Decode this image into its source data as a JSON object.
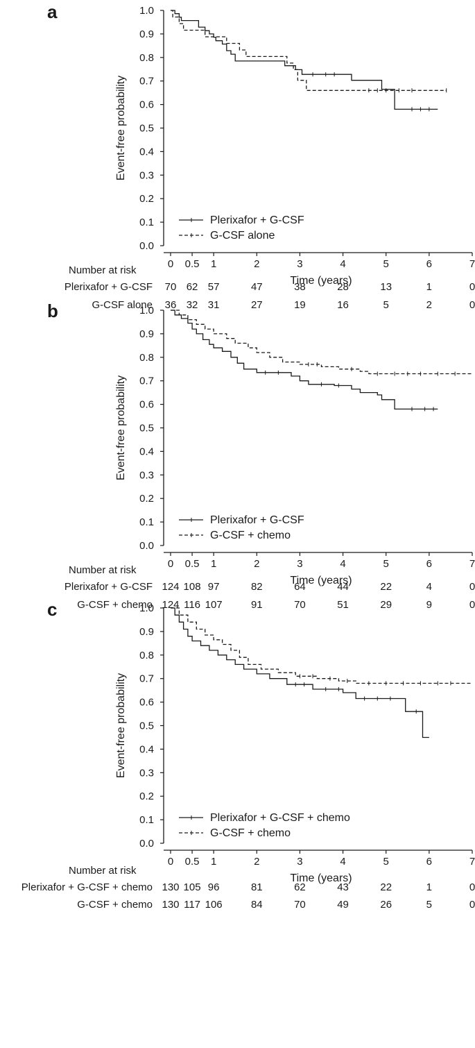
{
  "chart_data": [
    {
      "panel": "a",
      "type": "line",
      "title": "",
      "xlabel": "Time (years)",
      "ylabel": "Event-free probability",
      "xlim": [
        0,
        7
      ],
      "ylim": [
        0,
        1.0
      ],
      "xticks": [
        "0",
        "0.5",
        "1",
        "2",
        "3",
        "4",
        "5",
        "6",
        "7"
      ],
      "yticks": [
        "0.0",
        "0.1",
        "0.2",
        "0.3",
        "0.4",
        "0.5",
        "0.6",
        "0.7",
        "0.8",
        "0.9",
        "1.0"
      ],
      "legend_position": "bottom-left",
      "series": [
        {
          "name": "Plerixafor + G-CSF",
          "style": "solid",
          "points": [
            [
              0,
              1.0
            ],
            [
              0.1,
              0.986
            ],
            [
              0.2,
              0.971
            ],
            [
              0.25,
              0.957
            ],
            [
              0.65,
              0.929
            ],
            [
              0.8,
              0.914
            ],
            [
              0.9,
              0.9
            ],
            [
              1.0,
              0.886
            ],
            [
              1.05,
              0.871
            ],
            [
              1.2,
              0.857
            ],
            [
              1.3,
              0.829
            ],
            [
              1.4,
              0.814
            ],
            [
              1.5,
              0.785
            ],
            [
              2.65,
              0.765
            ],
            [
              2.9,
              0.748
            ],
            [
              3.05,
              0.728
            ],
            [
              3.9,
              0.728
            ],
            [
              4.2,
              0.703
            ],
            [
              4.85,
              0.703
            ],
            [
              4.9,
              0.665
            ],
            [
              5.2,
              0.58
            ],
            [
              6.2,
              0.58
            ]
          ],
          "censored": [
            3.3,
            3.6,
            3.8,
            5.6,
            5.8,
            6.0
          ]
        },
        {
          "name": "G-CSF alone",
          "style": "dashed",
          "points": [
            [
              0,
              1.0
            ],
            [
              0.05,
              0.972
            ],
            [
              0.2,
              0.944
            ],
            [
              0.3,
              0.916
            ],
            [
              0.7,
              0.916
            ],
            [
              0.8,
              0.888
            ],
            [
              1.25,
              0.888
            ],
            [
              1.3,
              0.86
            ],
            [
              1.55,
              0.86
            ],
            [
              1.6,
              0.832
            ],
            [
              1.75,
              0.804
            ],
            [
              2.65,
              0.804
            ],
            [
              2.7,
              0.776
            ],
            [
              2.85,
              0.748
            ],
            [
              2.95,
              0.703
            ],
            [
              3.15,
              0.66
            ],
            [
              6.4,
              0.66
            ]
          ],
          "censored": [
            4.6,
            4.8,
            5.0,
            5.3,
            5.6,
            6.4
          ]
        }
      ],
      "risk_table": {
        "header": "Number at risk",
        "times": [
          "0",
          "0.5",
          "1",
          "2",
          "3",
          "4",
          "5",
          "6",
          "7"
        ],
        "rows": [
          {
            "label": "Plerixafor + G-CSF",
            "values": [
              "70",
              "62",
              "57",
              "47",
              "38",
              "28",
              "13",
              "1",
              "0"
            ]
          },
          {
            "label": "G-CSF alone",
            "values": [
              "36",
              "32",
              "31",
              "27",
              "19",
              "16",
              "5",
              "2",
              "0"
            ]
          }
        ]
      }
    },
    {
      "panel": "b",
      "type": "line",
      "title": "",
      "xlabel": "Time (years)",
      "ylabel": "Event-free probability",
      "xlim": [
        0,
        7
      ],
      "ylim": [
        0,
        1.0
      ],
      "xticks": [
        "0",
        "0.5",
        "1",
        "2",
        "3",
        "4",
        "5",
        "6",
        "7"
      ],
      "yticks": [
        "0.0",
        "0.1",
        "0.2",
        "0.3",
        "0.4",
        "0.5",
        "0.6",
        "0.7",
        "0.8",
        "0.9",
        "1.0"
      ],
      "legend_position": "bottom-left",
      "series": [
        {
          "name": "Plerixafor + G-CSF",
          "style": "solid",
          "points": [
            [
              0,
              1.0
            ],
            [
              0.1,
              0.98
            ],
            [
              0.25,
              0.965
            ],
            [
              0.4,
              0.945
            ],
            [
              0.5,
              0.92
            ],
            [
              0.6,
              0.9
            ],
            [
              0.75,
              0.875
            ],
            [
              0.9,
              0.855
            ],
            [
              1.0,
              0.84
            ],
            [
              1.2,
              0.825
            ],
            [
              1.4,
              0.8
            ],
            [
              1.55,
              0.775
            ],
            [
              1.7,
              0.75
            ],
            [
              2.0,
              0.735
            ],
            [
              2.8,
              0.72
            ],
            [
              3.0,
              0.7
            ],
            [
              3.2,
              0.685
            ],
            [
              3.8,
              0.68
            ],
            [
              4.2,
              0.665
            ],
            [
              4.4,
              0.65
            ],
            [
              4.8,
              0.64
            ],
            [
              4.9,
              0.62
            ],
            [
              5.2,
              0.58
            ],
            [
              6.2,
              0.58
            ]
          ],
          "censored": [
            2.2,
            2.5,
            3.5,
            3.9,
            5.6,
            5.9,
            6.1
          ]
        },
        {
          "name": "G-CSF + chemo",
          "style": "dashed",
          "points": [
            [
              0,
              1.0
            ],
            [
              0.2,
              0.98
            ],
            [
              0.4,
              0.96
            ],
            [
              0.6,
              0.94
            ],
            [
              0.8,
              0.92
            ],
            [
              1.0,
              0.9
            ],
            [
              1.3,
              0.88
            ],
            [
              1.5,
              0.86
            ],
            [
              1.8,
              0.84
            ],
            [
              2.0,
              0.82
            ],
            [
              2.3,
              0.8
            ],
            [
              2.6,
              0.78
            ],
            [
              3.0,
              0.77
            ],
            [
              3.5,
              0.76
            ],
            [
              3.9,
              0.75
            ],
            [
              4.4,
              0.74
            ],
            [
              4.6,
              0.73
            ],
            [
              7.0,
              0.73
            ]
          ],
          "censored": [
            3.2,
            3.4,
            4.2,
            4.8,
            5.2,
            5.5,
            5.8,
            6.2,
            6.6
          ]
        }
      ],
      "risk_table": {
        "header": "Number at risk",
        "times": [
          "0",
          "0.5",
          "1",
          "2",
          "3",
          "4",
          "5",
          "6",
          "7"
        ],
        "rows": [
          {
            "label": "Plerixafor + G-CSF",
            "values": [
              "124",
              "108",
              "97",
              "82",
              "64",
              "44",
              "22",
              "4",
              "0"
            ]
          },
          {
            "label": "G-CSF + chemo",
            "values": [
              "124",
              "116",
              "107",
              "91",
              "70",
              "51",
              "29",
              "9",
              "0"
            ]
          }
        ]
      }
    },
    {
      "panel": "c",
      "type": "line",
      "title": "",
      "xlabel": "Time (years)",
      "ylabel": "Event-free probability",
      "xlim": [
        0,
        7
      ],
      "ylim": [
        0,
        1.0
      ],
      "xticks": [
        "0",
        "0.5",
        "1",
        "2",
        "3",
        "4",
        "5",
        "6",
        "7"
      ],
      "yticks": [
        "0.0",
        "0.1",
        "0.2",
        "0.3",
        "0.4",
        "0.5",
        "0.6",
        "0.7",
        "0.8",
        "0.9",
        "1.0"
      ],
      "legend_position": "bottom-left",
      "series": [
        {
          "name": "Plerixafor + G-CSF + chemo",
          "style": "solid",
          "points": [
            [
              0,
              1.0
            ],
            [
              0.1,
              0.97
            ],
            [
              0.2,
              0.94
            ],
            [
              0.3,
              0.91
            ],
            [
              0.4,
              0.88
            ],
            [
              0.5,
              0.86
            ],
            [
              0.7,
              0.84
            ],
            [
              0.9,
              0.82
            ],
            [
              1.1,
              0.8
            ],
            [
              1.3,
              0.78
            ],
            [
              1.5,
              0.76
            ],
            [
              1.7,
              0.74
            ],
            [
              2.0,
              0.72
            ],
            [
              2.3,
              0.7
            ],
            [
              2.7,
              0.675
            ],
            [
              3.3,
              0.655
            ],
            [
              4.0,
              0.64
            ],
            [
              4.3,
              0.615
            ],
            [
              5.45,
              0.56
            ],
            [
              5.85,
              0.45
            ],
            [
              6.0,
              0.45
            ]
          ],
          "censored": [
            2.9,
            3.1,
            3.6,
            3.9,
            4.5,
            4.8,
            5.1,
            5.7
          ]
        },
        {
          "name": "G-CSF + chemo",
          "style": "dashed",
          "points": [
            [
              0,
              1.0
            ],
            [
              0.2,
              0.97
            ],
            [
              0.4,
              0.94
            ],
            [
              0.6,
              0.91
            ],
            [
              0.8,
              0.885
            ],
            [
              1.0,
              0.865
            ],
            [
              1.2,
              0.845
            ],
            [
              1.4,
              0.82
            ],
            [
              1.6,
              0.79
            ],
            [
              1.8,
              0.76
            ],
            [
              2.1,
              0.74
            ],
            [
              2.5,
              0.725
            ],
            [
              2.9,
              0.71
            ],
            [
              3.4,
              0.7
            ],
            [
              3.9,
              0.69
            ],
            [
              4.3,
              0.68
            ],
            [
              7.0,
              0.68
            ]
          ],
          "censored": [
            3.0,
            3.3,
            3.7,
            4.1,
            4.6,
            5.0,
            5.4,
            5.8,
            6.2,
            6.5
          ]
        }
      ],
      "risk_table": {
        "header": "Number at risk",
        "times": [
          "0",
          "0.5",
          "1",
          "2",
          "3",
          "4",
          "5",
          "6",
          "7"
        ],
        "rows": [
          {
            "label": "Plerixafor + G-CSF + chemo",
            "values": [
              "130",
              "105",
              "96",
              "81",
              "62",
              "43",
              "22",
              "1",
              "0"
            ]
          },
          {
            "label": "G-CSF + chemo",
            "values": [
              "130",
              "117",
              "106",
              "84",
              "70",
              "49",
              "26",
              "5",
              "0"
            ]
          }
        ]
      }
    }
  ]
}
